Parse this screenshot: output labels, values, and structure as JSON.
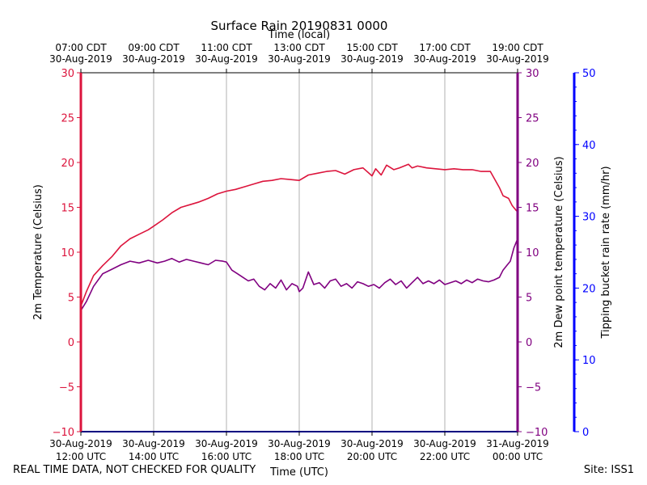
{
  "footer": {
    "quality_note": "REAL TIME DATA, NOT CHECKED FOR QUALITY",
    "site": "Site: ISS1"
  },
  "colors": {
    "temperature": "#dc143c",
    "dewpoint": "#800080",
    "rain": "#0000ff",
    "grid": "#b0b0b0",
    "axis": "#000000"
  },
  "chart_data": {
    "type": "line",
    "title": "Surface Rain 20190831 0000",
    "xlabel_bottom": "Time (UTC)",
    "xlabel_top": "Time (local)",
    "ylabel_left": "2m Temperature (Celsius)",
    "ylabel_right_inner": "2m Dew point temperature (Celsius)",
    "ylabel_right_outer": "Tipping bucket rain rate (mm/hr)",
    "x_range_hours_utc": [
      12,
      24
    ],
    "ylim_temperature": [
      -10,
      30
    ],
    "ylim_dewpoint": [
      -10,
      30
    ],
    "ylim_rain": [
      0,
      50
    ],
    "yticks_temperature": [
      "−10",
      "−5",
      "0",
      "5",
      "10",
      "15",
      "20",
      "25",
      "30"
    ],
    "yticks_dewpoint": [
      "−10",
      "−5",
      "0",
      "5",
      "10",
      "15",
      "20",
      "25",
      "30"
    ],
    "yticks_rain": [
      "0",
      "10",
      "20",
      "30",
      "40",
      "50"
    ],
    "x_ticks": [
      {
        "hour": 12,
        "utc_date": "30-Aug-2019",
        "utc_time": "12:00 UTC",
        "local_time": "07:00 CDT",
        "local_date": "30-Aug-2019"
      },
      {
        "hour": 14,
        "utc_date": "30-Aug-2019",
        "utc_time": "14:00 UTC",
        "local_time": "09:00 CDT",
        "local_date": "30-Aug-2019"
      },
      {
        "hour": 16,
        "utc_date": "30-Aug-2019",
        "utc_time": "16:00 UTC",
        "local_time": "11:00 CDT",
        "local_date": "30-Aug-2019"
      },
      {
        "hour": 18,
        "utc_date": "30-Aug-2019",
        "utc_time": "18:00 UTC",
        "local_time": "13:00 CDT",
        "local_date": "30-Aug-2019"
      },
      {
        "hour": 20,
        "utc_date": "30-Aug-2019",
        "utc_time": "20:00 UTC",
        "local_time": "15:00 CDT",
        "local_date": "30-Aug-2019"
      },
      {
        "hour": 22,
        "utc_date": "30-Aug-2019",
        "utc_time": "22:00 UTC",
        "local_time": "17:00 CDT",
        "local_date": "30-Aug-2019"
      },
      {
        "hour": 24,
        "utc_date": "31-Aug-2019",
        "utc_time": "00:00 UTC",
        "local_time": "19:00 CDT",
        "local_date": "30-Aug-2019"
      }
    ],
    "series": [
      {
        "name": "2m Temperature",
        "axis": "temperature",
        "x_hours": [
          12.0,
          12.15,
          12.35,
          12.6,
          12.85,
          13.1,
          13.35,
          13.6,
          13.85,
          14.0,
          14.25,
          14.5,
          14.75,
          15.0,
          15.25,
          15.5,
          15.75,
          16.0,
          16.25,
          16.5,
          16.75,
          17.0,
          17.25,
          17.5,
          17.75,
          18.0,
          18.25,
          18.5,
          18.75,
          19.0,
          19.25,
          19.5,
          19.75,
          20.0,
          20.1,
          20.25,
          20.4,
          20.6,
          20.75,
          21.0,
          21.1,
          21.25,
          21.5,
          21.75,
          22.0,
          22.25,
          22.5,
          22.75,
          23.0,
          23.25,
          23.5,
          23.6,
          23.75,
          23.85,
          23.95,
          24.0
        ],
        "values": [
          4.0,
          5.6,
          7.4,
          8.5,
          9.5,
          10.7,
          11.5,
          12.0,
          12.5,
          12.9,
          13.6,
          14.4,
          15.0,
          15.3,
          15.6,
          16.0,
          16.5,
          16.8,
          17.0,
          17.3,
          17.6,
          17.9,
          18.0,
          18.2,
          18.1,
          18.0,
          18.6,
          18.8,
          19.0,
          19.1,
          18.7,
          19.2,
          19.4,
          18.5,
          19.3,
          18.6,
          19.7,
          19.2,
          19.4,
          19.8,
          19.4,
          19.6,
          19.4,
          19.3,
          19.2,
          19.3,
          19.2,
          19.2,
          19.0,
          19.0,
          17.2,
          16.3,
          16.0,
          15.2,
          14.7,
          14.5
        ]
      },
      {
        "name": "2m Dew point temperature",
        "axis": "dewpoint",
        "x_hours": [
          12.0,
          12.15,
          12.35,
          12.6,
          12.85,
          13.1,
          13.35,
          13.6,
          13.85,
          14.1,
          14.3,
          14.5,
          14.7,
          14.9,
          15.1,
          15.3,
          15.5,
          15.7,
          15.9,
          16.0,
          16.15,
          16.3,
          16.45,
          16.6,
          16.75,
          16.9,
          17.05,
          17.2,
          17.35,
          17.5,
          17.65,
          17.8,
          17.95,
          18.0,
          18.1,
          18.25,
          18.4,
          18.55,
          18.7,
          18.85,
          19.0,
          19.15,
          19.3,
          19.45,
          19.6,
          19.75,
          19.9,
          20.05,
          20.2,
          20.35,
          20.5,
          20.65,
          20.8,
          20.95,
          21.1,
          21.25,
          21.4,
          21.55,
          21.7,
          21.85,
          22.0,
          22.15,
          22.3,
          22.45,
          22.6,
          22.75,
          22.9,
          23.05,
          23.2,
          23.35,
          23.5,
          23.6,
          23.7,
          23.8,
          23.9,
          24.0
        ],
        "values": [
          3.5,
          4.5,
          6.2,
          7.6,
          8.1,
          8.6,
          9.0,
          8.8,
          9.1,
          8.8,
          9.0,
          9.3,
          8.9,
          9.2,
          9.0,
          8.8,
          8.6,
          9.1,
          9.0,
          8.9,
          8.0,
          7.6,
          7.2,
          6.8,
          7.0,
          6.2,
          5.8,
          6.5,
          6.0,
          6.9,
          5.8,
          6.5,
          6.2,
          5.6,
          6.0,
          7.8,
          6.4,
          6.6,
          6.0,
          6.8,
          7.0,
          6.2,
          6.5,
          6.0,
          6.7,
          6.5,
          6.2,
          6.4,
          6.0,
          6.6,
          7.0,
          6.4,
          6.8,
          6.0,
          6.6,
          7.2,
          6.5,
          6.8,
          6.5,
          6.9,
          6.4,
          6.6,
          6.8,
          6.5,
          6.9,
          6.6,
          7.0,
          6.8,
          6.7,
          6.9,
          7.2,
          8.0,
          8.5,
          9.0,
          10.5,
          11.5
        ]
      },
      {
        "name": "Tipping bucket rain rate",
        "axis": "rain",
        "x_hours": [
          12.0,
          24.0
        ],
        "values": [
          0.0,
          0.0
        ]
      }
    ]
  }
}
